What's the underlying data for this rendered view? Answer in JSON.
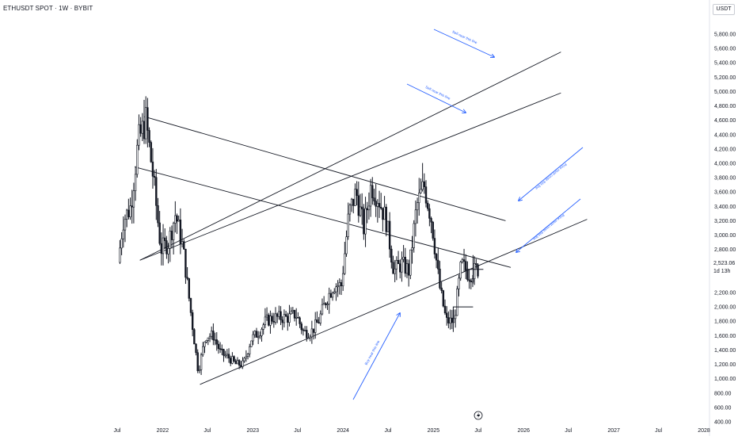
{
  "header": {
    "symbol_title": "ETHUSDT SPOT · 1W · BYBIT",
    "currency": "USDT"
  },
  "price_scale": {
    "last_price": "2,523.06",
    "countdown": "1d 13h",
    "labels": [
      "5,800.00",
      "5,600.00",
      "5,400.00",
      "5,200.00",
      "5,000.00",
      "4,800.00",
      "4,600.00",
      "4,400.00",
      "4,200.00",
      "4,000.00",
      "3,800.00",
      "3,600.00",
      "3,400.00",
      "3,200.00",
      "3,000.00",
      "2,800.00",
      "2,600.00",
      "2,200.00",
      "2,000.00",
      "1,800.00",
      "1,600.00",
      "1,400.00",
      "1,200.00",
      "1,000.00",
      "800.00",
      "600.00",
      "400.00"
    ]
  },
  "time_scale": {
    "labels": [
      "Jul",
      "2022",
      "Jul",
      "2023",
      "Jul",
      "2024",
      "Jul",
      "2025",
      "Jul",
      "2026",
      "Jul",
      "2027",
      "Jul",
      "2028"
    ]
  },
  "annotations": {
    "sell_1": "Sell near this line",
    "sell_2": "Sell near this line",
    "price_1": "Price must cross this line",
    "price_2": "Price must cross this line",
    "buy": "Buy near this line"
  },
  "colors": {
    "candles": "#131722",
    "trendlines": "#131722",
    "annotation_blue": "#2962ff",
    "grid": "none"
  },
  "icons": {
    "bottom_marker": "lightning-icon"
  },
  "chart_data": {
    "type": "candlestick",
    "title": "ETHUSDT SPOT · 1W · BYBIT",
    "xlabel": "",
    "ylabel": "",
    "ylim": [
      400,
      5900
    ],
    "xlim": [
      "2021-07-01",
      "2028-01-01"
    ],
    "grid": false,
    "last_price": 2523.06,
    "series": [
      {
        "name": "ETHUSDT",
        "x": [
          "2021-07-01",
          "2021-08-01",
          "2021-09-01",
          "2021-10-01",
          "2021-11-01",
          "2021-12-01",
          "2022-01-01",
          "2022-02-01",
          "2022-03-01",
          "2022-04-01",
          "2022-05-01",
          "2022-06-01",
          "2022-07-01",
          "2022-08-01",
          "2022-09-01",
          "2022-10-01",
          "2022-11-01",
          "2022-12-01",
          "2023-01-01",
          "2023-02-01",
          "2023-03-01",
          "2023-04-01",
          "2023-05-01",
          "2023-06-01",
          "2023-07-01",
          "2023-08-01",
          "2023-09-01",
          "2023-10-01",
          "2023-11-01",
          "2023-12-01",
          "2024-01-01",
          "2024-02-01",
          "2024-03-01",
          "2024-04-01",
          "2024-05-01",
          "2024-06-01",
          "2024-07-01",
          "2024-08-01",
          "2024-09-01",
          "2024-10-01",
          "2024-11-01",
          "2024-12-01",
          "2025-01-01",
          "2025-02-01",
          "2025-03-01",
          "2025-04-01",
          "2025-05-01",
          "2025-06-01",
          "2025-07-01"
        ],
        "y": [
          2300,
          3200,
          3400,
          4300,
          4600,
          3800,
          2800,
          2900,
          3300,
          2800,
          1950,
          1100,
          1600,
          1600,
          1350,
          1300,
          1200,
          1200,
          1550,
          1650,
          1800,
          1850,
          1850,
          1850,
          1900,
          1650,
          1650,
          1800,
          2100,
          2300,
          2300,
          3300,
          3600,
          3100,
          3700,
          3500,
          3200,
          2500,
          2600,
          2500,
          3400,
          3700,
          3200,
          2300,
          1800,
          1800,
          2600,
          2450,
          2523.06
        ]
      }
    ],
    "trendlines": [
      {
        "x": [
          "2021-10-20",
          "2025-10-20"
        ],
        "y": [
          4650,
          3200
        ]
      },
      {
        "x": [
          "2021-09-10",
          "2025-11-10"
        ],
        "y": [
          3950,
          2550
        ]
      },
      {
        "x": [
          "2021-10-01",
          "2026-06-01"
        ],
        "y": [
          2650,
          5550
        ]
      },
      {
        "x": [
          "2021-10-01",
          "2026-06-01"
        ],
        "y": [
          2650,
          4980
        ]
      },
      {
        "x": [
          "2022-06-01",
          "2026-09-15"
        ],
        "y": [
          920,
          3220
        ]
      }
    ]
  }
}
